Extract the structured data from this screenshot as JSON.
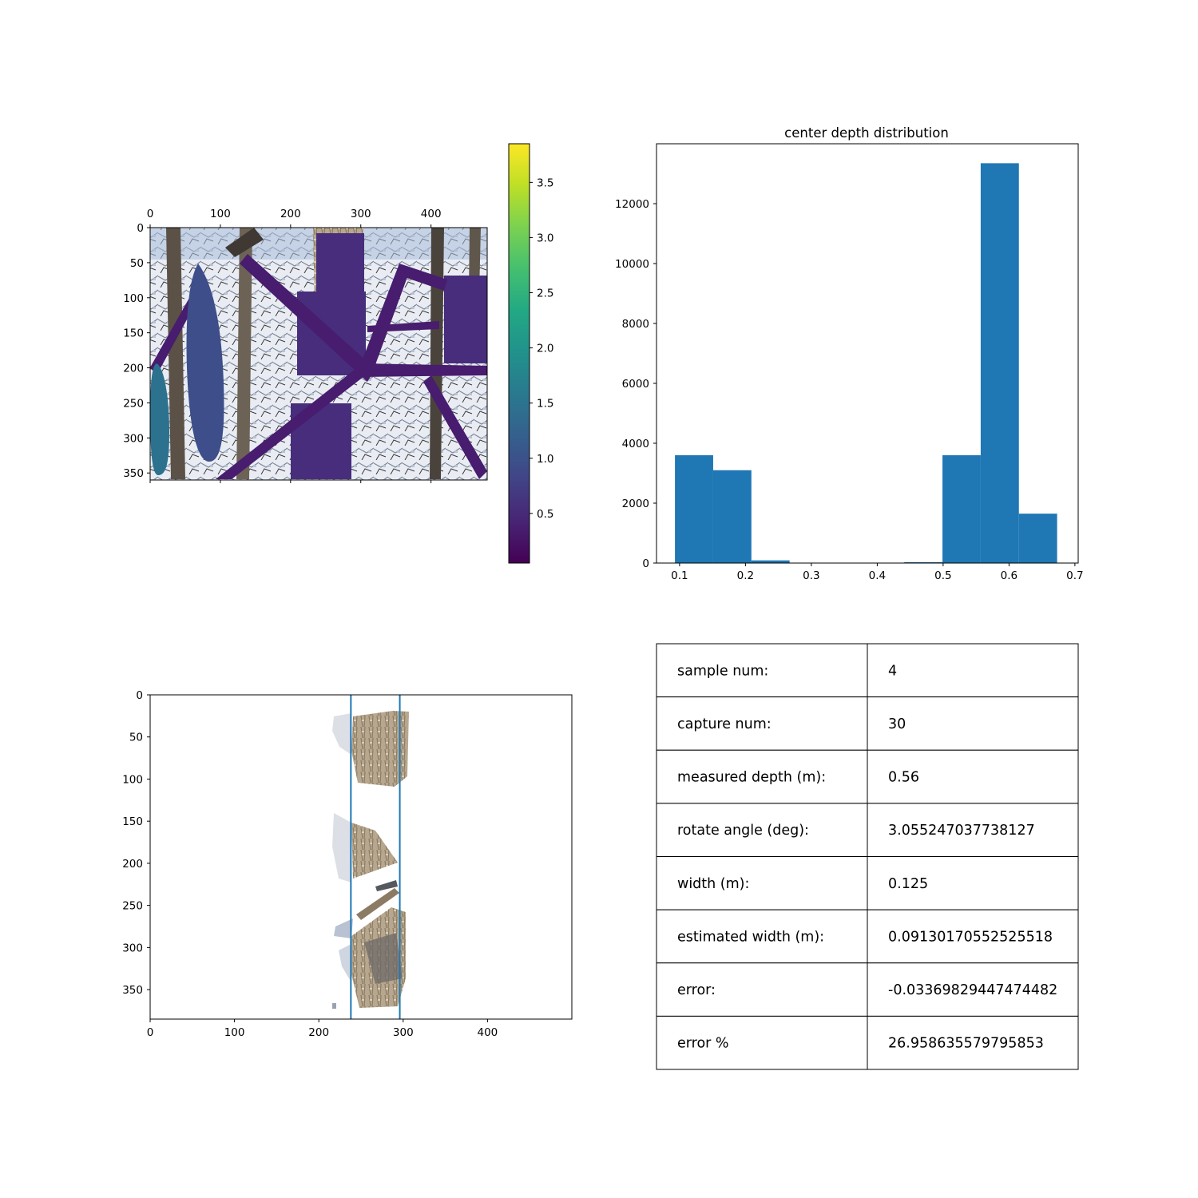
{
  "chart_data": [
    {
      "type": "heatmap",
      "description_role": "depth overlay image",
      "x_ticks": [
        "0",
        "100",
        "200",
        "300",
        "400"
      ],
      "y_ticks": [
        "0",
        "50",
        "100",
        "150",
        "200",
        "250",
        "300",
        "350"
      ],
      "xlim": [
        0,
        480
      ],
      "ylim": [
        360,
        0
      ],
      "colorbar": {
        "colormap": "viridis",
        "range": [
          0.05,
          3.85
        ],
        "ticks": [
          "0.5",
          "1.0",
          "1.5",
          "2.0",
          "2.5",
          "3.0",
          "3.5"
        ]
      },
      "regions": [
        {
          "value": 0.9,
          "color": "#3d4e8a"
        },
        {
          "value": 1.3,
          "color": "#2c728e"
        },
        {
          "value": 0.5,
          "color": "#472d7b"
        },
        {
          "value": 0.25,
          "color": "#481c6e"
        }
      ]
    },
    {
      "type": "bar",
      "title": "center depth distribution",
      "xlim": [
        0.065,
        0.705
      ],
      "ylim": [
        0,
        14000
      ],
      "x_ticks": [
        "0.1",
        "0.2",
        "0.3",
        "0.4",
        "0.5",
        "0.6",
        "0.7"
      ],
      "y_ticks": [
        "0",
        "2000",
        "4000",
        "6000",
        "8000",
        "10000",
        "12000"
      ],
      "bin_edges": [
        0.093,
        0.151,
        0.209,
        0.267,
        0.325,
        0.383,
        0.441,
        0.499,
        0.557,
        0.615,
        0.673
      ],
      "values": [
        3600,
        3100,
        90,
        0,
        0,
        0,
        30,
        3600,
        13350,
        1650
      ],
      "bar_color": "#1f77b4"
    },
    {
      "type": "scatter",
      "description_role": "rotated trunk crop image with width bounds",
      "xlim": [
        0,
        500
      ],
      "ylim": [
        385,
        0
      ],
      "x_ticks": [
        "0",
        "100",
        "200",
        "300",
        "400"
      ],
      "y_ticks": [
        "0",
        "50",
        "100",
        "150",
        "200",
        "250",
        "300",
        "350"
      ],
      "vertical_lines": [
        238,
        296
      ],
      "line_color": "#1f77b4"
    },
    {
      "type": "table",
      "rows": [
        [
          "sample num:",
          "4"
        ],
        [
          "capture num:",
          "30"
        ],
        [
          "measured depth (m):",
          "0.56"
        ],
        [
          "rotate angle (deg):",
          "3.055247037738127"
        ],
        [
          "width (m):",
          "0.125"
        ],
        [
          "estimated width (m):",
          "0.09130170552525518"
        ],
        [
          "error:",
          "-0.03369829447474482"
        ],
        [
          "error %",
          "26.958635579795853"
        ]
      ]
    }
  ]
}
